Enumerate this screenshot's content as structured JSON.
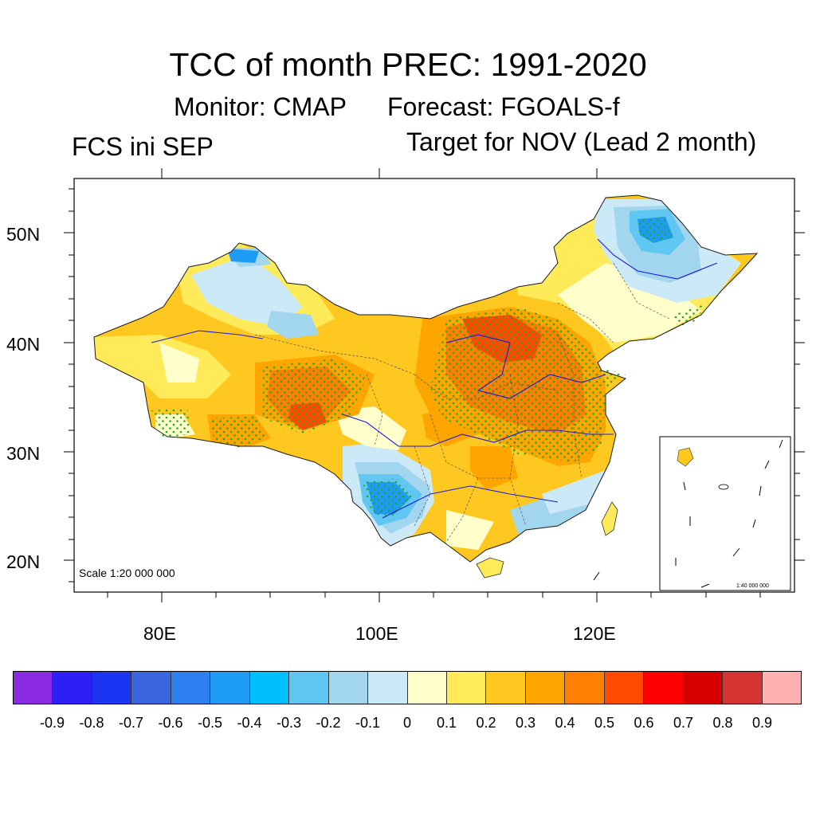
{
  "title": "TCC of month PREC: 1991-2020",
  "subtitle_monitor": "Monitor: CMAP",
  "subtitle_forecast": "Forecast: FGOALS-f",
  "left_label": "FCS ini SEP",
  "right_label": "Target for NOV (Lead 2 month)",
  "y_axis_labels": [
    "50N",
    "40N",
    "30N",
    "20N"
  ],
  "x_axis_labels": [
    "80E",
    "100E",
    "120E"
  ],
  "scale_label": "Scale 1:20 000 000",
  "inset_scale_label": "1:40 000 000",
  "colorbar": {
    "colors": [
      "#8a2be2",
      "#2e1ff5",
      "#1c35f2",
      "#3a66e0",
      "#2e7ff0",
      "#1e9bf5",
      "#00bfff",
      "#5fc7f2",
      "#a2d6ef",
      "#cce9f7",
      "#ffffcc",
      "#ffeb5a",
      "#ffc820",
      "#ffa500",
      "#ff8000",
      "#ff4a00",
      "#ff0000",
      "#d60000",
      "#d63333",
      "#ffb0b0"
    ],
    "tick_labels": [
      "-0.9",
      "-0.8",
      "-0.7",
      "-0.6",
      "-0.5",
      "-0.4",
      "-0.3",
      "-0.2",
      "-0.1",
      "0",
      "0.1",
      "0.2",
      "0.3",
      "0.4",
      "0.5",
      "0.6",
      "0.7",
      "0.8",
      "0.9"
    ]
  }
}
